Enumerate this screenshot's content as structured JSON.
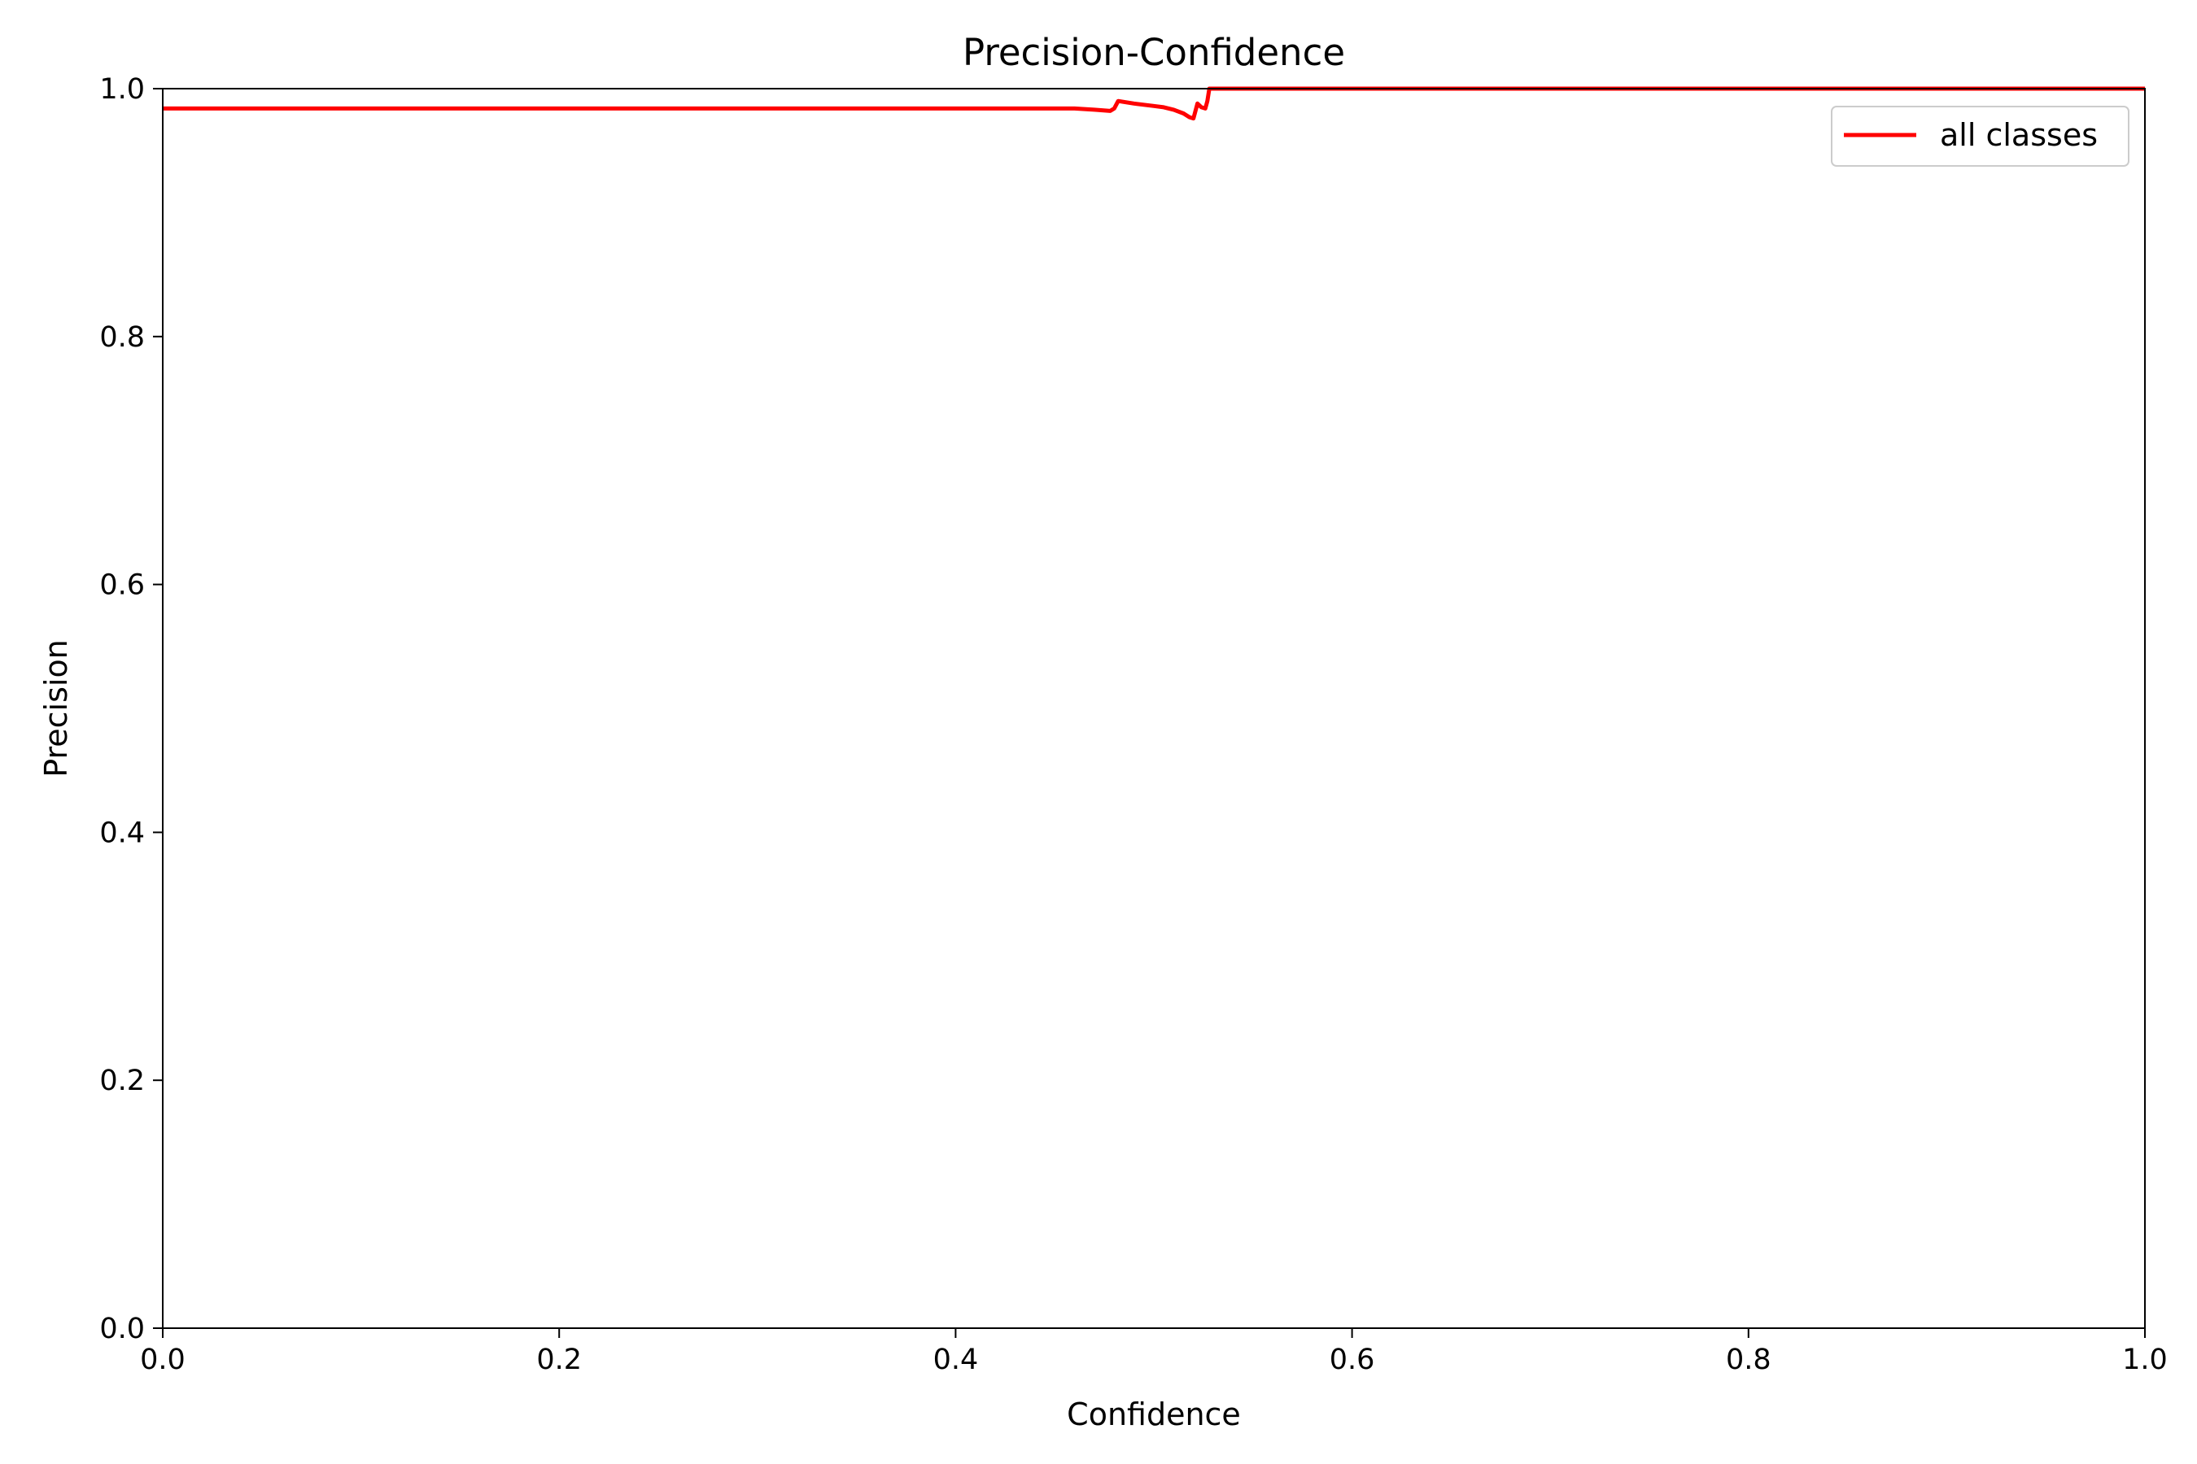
{
  "chart_data": {
    "type": "line",
    "title": "Precision-Confidence",
    "xlabel": "Confidence",
    "ylabel": "Precision",
    "xlim": [
      0,
      1
    ],
    "ylim": [
      0,
      1
    ],
    "xticks": [
      "0.0",
      "0.2",
      "0.4",
      "0.6",
      "0.8",
      "1.0"
    ],
    "yticks": [
      "0.0",
      "0.2",
      "0.4",
      "0.6",
      "0.8",
      "1.0"
    ],
    "grid": false,
    "legend": {
      "placement": "top-right"
    },
    "series": [
      {
        "name": "all classes",
        "color": "#ff0000",
        "x": [
          0.0,
          0.1,
          0.2,
          0.3,
          0.4,
          0.45,
          0.46,
          0.47,
          0.478,
          0.48,
          0.482,
          0.49,
          0.5,
          0.505,
          0.51,
          0.515,
          0.518,
          0.52,
          0.522,
          0.524,
          0.526,
          0.527,
          0.528,
          0.53,
          0.54,
          0.6,
          0.7,
          0.8,
          0.9,
          1.0
        ],
        "y": [
          0.984,
          0.984,
          0.984,
          0.984,
          0.984,
          0.984,
          0.984,
          0.983,
          0.982,
          0.984,
          0.99,
          0.988,
          0.986,
          0.985,
          0.983,
          0.98,
          0.977,
          0.976,
          0.988,
          0.985,
          0.984,
          0.99,
          1.0,
          1.0,
          1.0,
          1.0,
          1.0,
          1.0,
          1.0,
          1.0
        ]
      }
    ]
  }
}
